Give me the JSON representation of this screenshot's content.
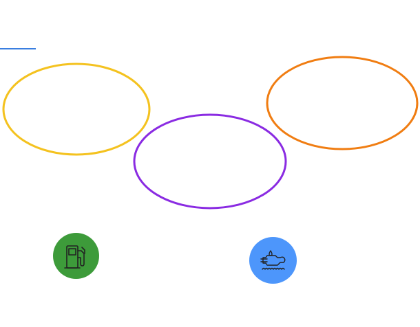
{
  "colors": {
    "blue_line": "#3a7ee0",
    "ellipse_yellow": "#f4c21f",
    "ellipse_purple": "#8a2be2",
    "ellipse_orange": "#f07d12",
    "badge_green": "#3d9b3a",
    "badge_blue": "#4d96fb",
    "icon_stroke": "#222222"
  },
  "icons": {
    "fuel": "fuel-pump-icon",
    "engine": "engine-oil-icon"
  }
}
